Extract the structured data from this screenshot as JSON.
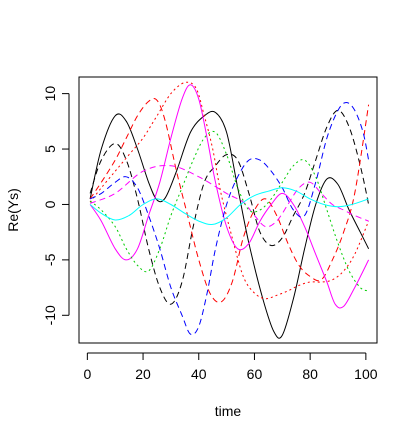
{
  "chart_data": {
    "type": "line",
    "title": "",
    "xlabel": "time",
    "ylabel": "Re(Ys)",
    "xlim": [
      -3,
      104
    ],
    "ylim": [
      -12.5,
      11.5
    ],
    "x_ticks": [
      0,
      20,
      40,
      60,
      80,
      100
    ],
    "y_ticks": [
      -10,
      -5,
      0,
      5,
      10
    ],
    "x_tick_labels": [
      "0",
      "20",
      "40",
      "60",
      "80",
      "100"
    ],
    "y_tick_labels": [
      "-10",
      "-5",
      "0",
      "5",
      "10"
    ],
    "grid": false,
    "legend": "none",
    "series": [
      {
        "color": "#000000",
        "dash": "solid",
        "points": [
          [
            1,
            0.5
          ],
          [
            5,
            5
          ],
          [
            10,
            8
          ],
          [
            14,
            7.5
          ],
          [
            18,
            5
          ],
          [
            22,
            2
          ],
          [
            25,
            0.4
          ],
          [
            28,
            0.6
          ],
          [
            32,
            3
          ],
          [
            37,
            6.5
          ],
          [
            42,
            8
          ],
          [
            46,
            8.3
          ],
          [
            50,
            6.5
          ],
          [
            54,
            1.5
          ],
          [
            58,
            -3.5
          ],
          [
            63,
            -8.5
          ],
          [
            67,
            -11.5
          ],
          [
            70,
            -11.8
          ],
          [
            74,
            -8.5
          ],
          [
            78,
            -4
          ],
          [
            82,
            0
          ],
          [
            86,
            2.3
          ],
          [
            90,
            1.8
          ],
          [
            94,
            -0.5
          ],
          [
            98,
            -2.5
          ],
          [
            101,
            -4
          ]
        ]
      },
      {
        "color": "#000000",
        "dash": "dashed",
        "points": [
          [
            1,
            1
          ],
          [
            5,
            4
          ],
          [
            10,
            5.5
          ],
          [
            14,
            4
          ],
          [
            18,
            0.5
          ],
          [
            22,
            -4
          ],
          [
            26,
            -7.5
          ],
          [
            30,
            -9
          ],
          [
            34,
            -7
          ],
          [
            38,
            -2
          ],
          [
            42,
            2
          ],
          [
            46,
            3.5
          ],
          [
            50,
            4.5
          ],
          [
            54,
            4
          ],
          [
            58,
            1
          ],
          [
            62,
            -2.5
          ],
          [
            66,
            -3.7
          ],
          [
            70,
            -3
          ],
          [
            74,
            -1
          ],
          [
            78,
            1
          ],
          [
            82,
            4
          ],
          [
            86,
            7
          ],
          [
            90,
            8.5
          ],
          [
            94,
            7
          ],
          [
            98,
            3.5
          ],
          [
            101,
            0
          ]
        ]
      },
      {
        "color": "#ff0000",
        "dash": "dashed",
        "points": [
          [
            1,
            0.5
          ],
          [
            5,
            2
          ],
          [
            10,
            4
          ],
          [
            14,
            6
          ],
          [
            18,
            8
          ],
          [
            22,
            9.3
          ],
          [
            25,
            9.4
          ],
          [
            28,
            7.5
          ],
          [
            32,
            3
          ],
          [
            36,
            -1
          ],
          [
            40,
            -5
          ],
          [
            44,
            -8
          ],
          [
            48,
            -8.8
          ],
          [
            52,
            -7
          ],
          [
            56,
            -3
          ],
          [
            60,
            -0.5
          ],
          [
            64,
            0.5
          ],
          [
            68,
            -1
          ],
          [
            72,
            -3.5
          ],
          [
            76,
            -5.5
          ],
          [
            80,
            -6.5
          ],
          [
            84,
            -6.8
          ],
          [
            88,
            -5
          ],
          [
            92,
            -2.5
          ],
          [
            96,
            1
          ],
          [
            101,
            9
          ]
        ]
      },
      {
        "color": "#ff0000",
        "dash": "dotted",
        "points": [
          [
            1,
            0.2
          ],
          [
            5,
            1.5
          ],
          [
            10,
            3
          ],
          [
            15,
            4.5
          ],
          [
            20,
            6
          ],
          [
            25,
            8
          ],
          [
            30,
            10
          ],
          [
            35,
            11
          ],
          [
            39,
            10.5
          ],
          [
            42,
            8
          ],
          [
            45,
            5
          ],
          [
            48,
            1
          ],
          [
            52,
            -3
          ],
          [
            56,
            -6.5
          ],
          [
            60,
            -8
          ],
          [
            64,
            -8.5
          ],
          [
            68,
            -8.2
          ],
          [
            72,
            -7.8
          ],
          [
            76,
            -7.3
          ],
          [
            80,
            -7
          ],
          [
            84,
            -7
          ],
          [
            88,
            -6.8
          ],
          [
            92,
            -6
          ],
          [
            96,
            -4.5
          ],
          [
            101,
            -1.5
          ]
        ]
      },
      {
        "color": "#ff00ff",
        "dash": "solid",
        "points": [
          [
            1,
            0
          ],
          [
            5,
            -1.5
          ],
          [
            10,
            -4
          ],
          [
            14,
            -5
          ],
          [
            18,
            -4
          ],
          [
            22,
            -1
          ],
          [
            26,
            2
          ],
          [
            30,
            6
          ],
          [
            34,
            9.5
          ],
          [
            37,
            10.8
          ],
          [
            40,
            9.5
          ],
          [
            43,
            6
          ],
          [
            46,
            2
          ],
          [
            50,
            -2
          ],
          [
            54,
            -4
          ],
          [
            58,
            -3.5
          ],
          [
            62,
            -1.5
          ],
          [
            66,
            0
          ],
          [
            70,
            1
          ],
          [
            74,
            0
          ],
          [
            78,
            -2
          ],
          [
            82,
            -4.5
          ],
          [
            86,
            -7
          ],
          [
            89,
            -9
          ],
          [
            92,
            -9.2
          ],
          [
            96,
            -7.5
          ],
          [
            101,
            -5
          ]
        ]
      },
      {
        "color": "#ff00ff",
        "dash": "dashed",
        "points": [
          [
            1,
            0.1
          ],
          [
            10,
            1
          ],
          [
            20,
            3
          ],
          [
            30,
            3.5
          ],
          [
            40,
            2.5
          ],
          [
            50,
            1
          ],
          [
            56,
            0.2
          ],
          [
            60,
            -1
          ],
          [
            64,
            -2
          ],
          [
            68,
            -1.5
          ],
          [
            72,
            0
          ],
          [
            76,
            1.5
          ],
          [
            80,
            2
          ],
          [
            84,
            1
          ],
          [
            88,
            0
          ],
          [
            92,
            -0.5
          ],
          [
            96,
            -1
          ],
          [
            101,
            -1.5
          ]
        ]
      },
      {
        "color": "#00cc00",
        "dash": "dotted",
        "points": [
          [
            1,
            0.3
          ],
          [
            5,
            -0.5
          ],
          [
            10,
            -2
          ],
          [
            14,
            -4
          ],
          [
            18,
            -5.5
          ],
          [
            22,
            -6
          ],
          [
            26,
            -4
          ],
          [
            30,
            -1
          ],
          [
            34,
            1.5
          ],
          [
            38,
            4
          ],
          [
            42,
            6
          ],
          [
            46,
            6.5
          ],
          [
            50,
            4.5
          ],
          [
            54,
            1.5
          ],
          [
            58,
            -0.5
          ],
          [
            62,
            -0.5
          ],
          [
            66,
            0.5
          ],
          [
            70,
            2
          ],
          [
            74,
            3.5
          ],
          [
            78,
            4
          ],
          [
            82,
            2.5
          ],
          [
            86,
            -0.5
          ],
          [
            90,
            -3.5
          ],
          [
            94,
            -6
          ],
          [
            98,
            -7.5
          ],
          [
            101,
            -7.8
          ]
        ]
      },
      {
        "color": "#0000ff",
        "dash": "dashed",
        "points": [
          [
            1,
            0.5
          ],
          [
            5,
            1
          ],
          [
            10,
            2
          ],
          [
            14,
            2.5
          ],
          [
            18,
            1.5
          ],
          [
            22,
            -1
          ],
          [
            26,
            -4
          ],
          [
            30,
            -7.5
          ],
          [
            34,
            -10
          ],
          [
            37,
            -11.7
          ],
          [
            40,
            -11
          ],
          [
            43,
            -8
          ],
          [
            46,
            -4
          ],
          [
            50,
            0
          ],
          [
            54,
            2.5
          ],
          [
            58,
            4
          ],
          [
            62,
            4
          ],
          [
            66,
            3
          ],
          [
            70,
            1.5
          ],
          [
            74,
            -0.5
          ],
          [
            78,
            -1
          ],
          [
            82,
            2
          ],
          [
            86,
            6
          ],
          [
            90,
            8.5
          ],
          [
            93,
            9.2
          ],
          [
            96,
            8.5
          ],
          [
            99,
            6.5
          ],
          [
            101,
            4
          ]
        ]
      },
      {
        "color": "#00ffff",
        "dash": "solid",
        "points": [
          [
            1,
            0
          ],
          [
            5,
            -0.8
          ],
          [
            10,
            -1.4
          ],
          [
            15,
            -1
          ],
          [
            20,
            0
          ],
          [
            25,
            0.5
          ],
          [
            30,
            0
          ],
          [
            35,
            -0.8
          ],
          [
            40,
            -1.5
          ],
          [
            45,
            -1.8
          ],
          [
            50,
            -1.2
          ],
          [
            55,
            0
          ],
          [
            60,
            0.8
          ],
          [
            65,
            1.2
          ],
          [
            70,
            1.5
          ],
          [
            75,
            1.2
          ],
          [
            80,
            0.5
          ],
          [
            85,
            0
          ],
          [
            90,
            -0.2
          ],
          [
            95,
            0
          ],
          [
            101,
            0.5
          ]
        ]
      }
    ]
  }
}
